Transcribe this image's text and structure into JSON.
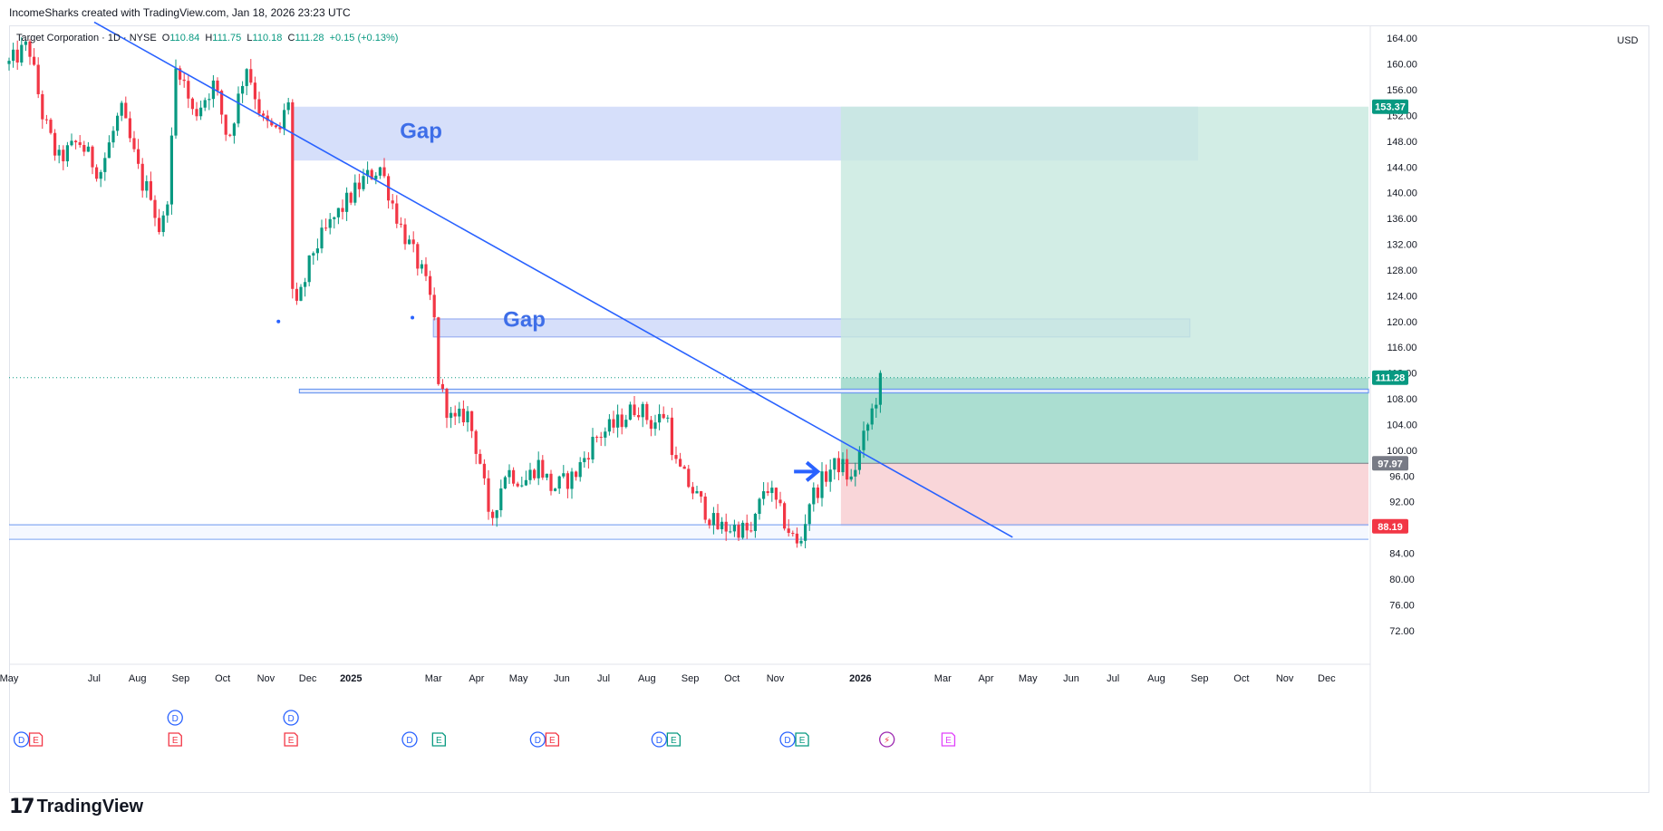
{
  "header": {
    "credit": "IncomeSharks created with TradingView.com, Jan 18, 2026 23:23 UTC"
  },
  "legend": {
    "symbol": "Target Corporation · 1D · NYSE",
    "o_label": "O",
    "o_value": "110.84",
    "h_label": "H",
    "h_value": "111.75",
    "l_label": "L",
    "l_value": "110.18",
    "c_label": "C",
    "c_value": "111.28",
    "change": "+0.15 (+0.13%)"
  },
  "currency": "USD",
  "footer": {
    "brand": "TradingView",
    "brand_mark": "17"
  },
  "colors": {
    "up": "#089981",
    "down": "#f23645",
    "trendline": "#2962ff",
    "gap_fill": "#bbc9f6",
    "target_zone": "#c7e8df",
    "profit_zone": "#8fd3c2",
    "stop_zone": "#f8d1d5",
    "support_line": "#5b8def"
  },
  "chart_data": {
    "type": "candlestick",
    "title": "Target Corporation · 1D · NYSE",
    "ylim": [
      70,
      166
    ],
    "y_ticks": [
      "164.00",
      "160.00",
      "156.00",
      "152.00",
      "148.00",
      "144.00",
      "140.00",
      "136.00",
      "132.00",
      "128.00",
      "124.00",
      "120.00",
      "116.00",
      "112.00",
      "108.00",
      "104.00",
      "100.00",
      "96.00",
      "92.00",
      "84.00",
      "80.00",
      "76.00",
      "72.00"
    ],
    "x_ticks": [
      "May",
      "Jul",
      "Aug",
      "Sep",
      "Oct",
      "Nov",
      "Dec",
      "2025",
      "Mar",
      "Apr",
      "May",
      "Jun",
      "Jul",
      "Aug",
      "Sep",
      "Oct",
      "Nov",
      "2026",
      "Mar",
      "Apr",
      "May",
      "Jun",
      "Jul",
      "Aug",
      "Sep",
      "Oct",
      "Nov",
      "Dec"
    ],
    "bold_x_ticks": [
      "2025",
      "2026"
    ],
    "price_path": [
      [
        "2024-05-01",
        160.0
      ],
      [
        "2024-05-15",
        163.0
      ],
      [
        "2024-05-25",
        152.0
      ],
      [
        "2024-06-05",
        145.0
      ],
      [
        "2024-06-20",
        148.0
      ],
      [
        "2024-07-05",
        143.0
      ],
      [
        "2024-07-20",
        153.0
      ],
      [
        "2024-08-05",
        141.0
      ],
      [
        "2024-08-12",
        140.0
      ],
      [
        "2024-08-15",
        134.0
      ],
      [
        "2024-08-21",
        136.0
      ],
      [
        "2024-08-25",
        146.0
      ],
      [
        "2024-08-29",
        161.0
      ],
      [
        "2024-09-10",
        152.0
      ],
      [
        "2024-09-25",
        157.0
      ],
      [
        "2024-10-05",
        148.0
      ],
      [
        "2024-10-18",
        160.0
      ],
      [
        "2024-10-30",
        151.0
      ],
      [
        "2024-11-10",
        149.0
      ],
      [
        "2024-11-19",
        156.0
      ],
      [
        "2024-11-20",
        125.0
      ],
      [
        "2024-11-22",
        121.0
      ],
      [
        "2024-12-05",
        131.0
      ],
      [
        "2024-12-20",
        136.0
      ],
      [
        "2025-01-10",
        142.0
      ],
      [
        "2025-01-22",
        144.0
      ],
      [
        "2025-02-05",
        135.0
      ],
      [
        "2025-02-20",
        128.0
      ],
      [
        "2025-03-01",
        122.0
      ],
      [
        "2025-03-05",
        110.0
      ],
      [
        "2025-03-15",
        104.0
      ],
      [
        "2025-03-25",
        106.0
      ],
      [
        "2025-04-05",
        97.0
      ],
      [
        "2025-04-10",
        88.0
      ],
      [
        "2025-04-22",
        97.0
      ],
      [
        "2025-05-05",
        95.0
      ],
      [
        "2025-05-15",
        98.0
      ],
      [
        "2025-05-25",
        94.0
      ],
      [
        "2025-06-10",
        96.0
      ],
      [
        "2025-06-25",
        102.0
      ],
      [
        "2025-07-10",
        104.0
      ],
      [
        "2025-07-25",
        107.0
      ],
      [
        "2025-08-05",
        104.0
      ],
      [
        "2025-08-15",
        106.0
      ],
      [
        "2025-08-21",
        98.0
      ],
      [
        "2025-09-05",
        93.0
      ],
      [
        "2025-09-20",
        88.0
      ],
      [
        "2025-10-05",
        88.0
      ],
      [
        "2025-10-15",
        87.0
      ],
      [
        "2025-10-25",
        95.0
      ],
      [
        "2025-11-05",
        90.0
      ],
      [
        "2025-11-18",
        84.5
      ],
      [
        "2025-11-25",
        92.0
      ],
      [
        "2025-12-10",
        97.0
      ],
      [
        "2025-12-18",
        98.0
      ],
      [
        "2025-12-25",
        95.0
      ],
      [
        "2026-01-05",
        103.0
      ],
      [
        "2026-01-12",
        108.0
      ],
      [
        "2026-01-16",
        111.28
      ]
    ],
    "price_labels": [
      {
        "value": 153.37,
        "text": "153.37",
        "color": "#089981"
      },
      {
        "value": 111.28,
        "text": "111.28",
        "color": "#089981"
      },
      {
        "value": 97.97,
        "text": "97.97",
        "color": "#787b86"
      },
      {
        "value": 88.19,
        "text": "88.19",
        "color": "#f23645"
      }
    ],
    "annotations": [
      {
        "text": "Gap",
        "x": "2025-02-05",
        "y": 148.5
      },
      {
        "text": "Gap",
        "x": "2025-04-20",
        "y": 119.2
      }
    ],
    "gap_zones": [
      {
        "x0": "2024-11-20",
        "x1": "2026-08-31",
        "y0": 145.0,
        "y1": 153.37
      },
      {
        "x0": "2025-03-01",
        "x1": "2026-08-25",
        "y0": 117.6,
        "y1": 120.4
      }
    ],
    "position": {
      "type": "long",
      "start": "2025-12-18",
      "end": "2026-12-31",
      "entry": 97.97,
      "target": 153.37,
      "stop": 88.19,
      "current": 111.28
    },
    "trendline": [
      [
        "2024-07-01",
        166.5
      ],
      [
        "2026-04-20",
        86.5
      ]
    ],
    "horizontal_lines": [
      {
        "y0": 108.9,
        "y1": 109.5,
        "x0": "2024-11-25",
        "x1": "2026-12-31",
        "type": "band"
      },
      {
        "y": 88.4,
        "type": "line"
      },
      {
        "y": 86.2,
        "type": "line"
      }
    ],
    "events": [
      {
        "date": "2024-05-15",
        "labels": [
          "D",
          "E"
        ],
        "row": "bottom"
      },
      {
        "date": "2024-08-28",
        "labels": [
          "D"
        ],
        "row": "top"
      },
      {
        "date": "2024-08-28",
        "labels": [
          "E"
        ],
        "row": "bottom"
      },
      {
        "date": "2024-11-19",
        "labels": [
          "D"
        ],
        "row": "top"
      },
      {
        "date": "2024-11-19",
        "labels": [
          "E"
        ],
        "row": "bottom"
      },
      {
        "date": "2025-02-12",
        "labels": [
          "D"
        ],
        "row": "bottom"
      },
      {
        "date": "2025-03-05",
        "labels": [
          "E"
        ],
        "row": "bottom"
      },
      {
        "date": "2025-05-20",
        "labels": [
          "D",
          "E"
        ],
        "row": "bottom"
      },
      {
        "date": "2025-08-15",
        "labels": [
          "D",
          "E"
        ],
        "row": "bottom"
      },
      {
        "date": "2025-11-15",
        "labels": [
          "D",
          "E"
        ],
        "row": "bottom"
      },
      {
        "date": "2026-01-20",
        "labels": [
          "⚡"
        ],
        "row": "bottom"
      },
      {
        "date": "2026-03-05",
        "labels": [
          "E"
        ],
        "row": "bottom"
      }
    ]
  }
}
